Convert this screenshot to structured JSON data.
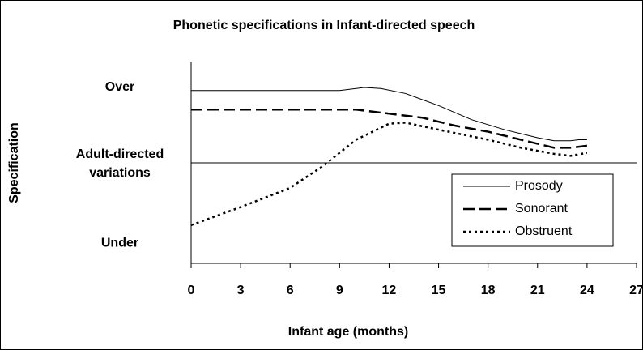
{
  "chart_data": {
    "type": "line",
    "title": "Phonetic specifications in Infant-directed speech",
    "xlabel": "Infant age (months)",
    "ylabel": "Specification",
    "xlim": [
      0,
      27
    ],
    "xticks": [
      0,
      3,
      6,
      9,
      12,
      15,
      18,
      21,
      24,
      27
    ],
    "ylim": [
      -1,
      1
    ],
    "yticks": [
      {
        "value": 0.75,
        "label": "Over"
      },
      {
        "value": 0,
        "label": "Adult-directed variations"
      },
      {
        "value": -0.8,
        "label": "Under"
      }
    ],
    "hline": 0,
    "legend": "lower right",
    "series": [
      {
        "name": "Prosody",
        "color": "#000000",
        "style": "solid",
        "x": [
          0,
          9,
          10.5,
          11.5,
          13,
          15,
          17,
          19,
          21,
          22,
          23,
          23.5,
          24
        ],
        "values": [
          0.72,
          0.72,
          0.75,
          0.74,
          0.69,
          0.57,
          0.43,
          0.33,
          0.25,
          0.22,
          0.22,
          0.23,
          0.23
        ]
      },
      {
        "name": "Sonorant",
        "color": "#000000",
        "style": "dashed",
        "x": [
          0,
          10,
          12,
          14,
          15,
          16,
          18,
          20,
          22,
          23,
          24
        ],
        "values": [
          0.53,
          0.53,
          0.49,
          0.45,
          0.41,
          0.37,
          0.31,
          0.23,
          0.15,
          0.15,
          0.17
        ]
      },
      {
        "name": "Obstruent",
        "color": "#000000",
        "style": "dotted",
        "x": [
          0,
          3,
          6,
          8,
          10,
          12,
          13,
          15,
          18,
          20,
          22,
          23,
          24
        ],
        "values": [
          -0.62,
          -0.44,
          -0.25,
          -0.03,
          0.23,
          0.39,
          0.4,
          0.33,
          0.23,
          0.15,
          0.09,
          0.07,
          0.1
        ]
      }
    ]
  }
}
